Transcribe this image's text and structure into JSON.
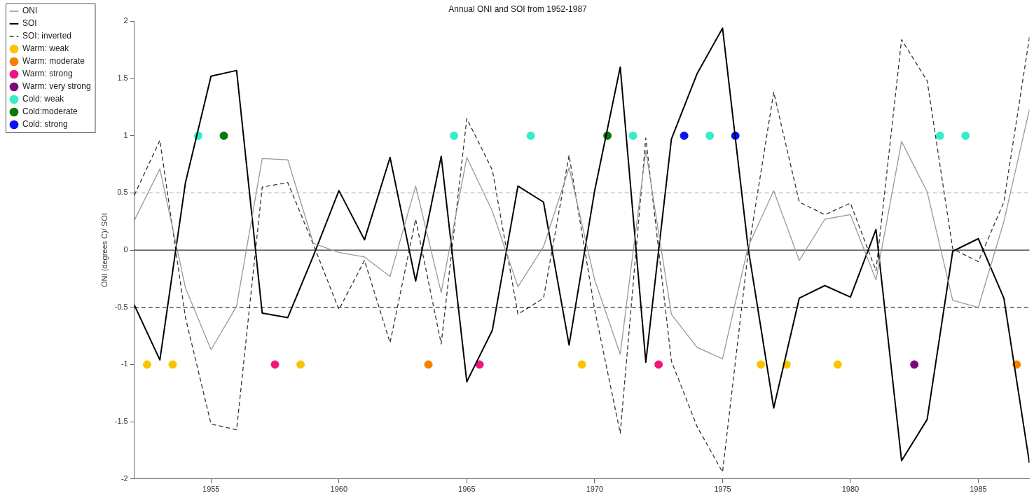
{
  "chart_data": {
    "type": "line",
    "title": "Annual ONI and SOI from 1952-1987",
    "ylabel": "ONI (degrees C)/ SOI",
    "x": [
      1952,
      1953,
      1954,
      1955,
      1956,
      1957,
      1958,
      1959,
      1960,
      1961,
      1962,
      1963,
      1964,
      1965,
      1966,
      1967,
      1968,
      1969,
      1970,
      1971,
      1972,
      1973,
      1974,
      1975,
      1976,
      1977,
      1978,
      1979,
      1980,
      1981,
      1982,
      1983,
      1984,
      1985,
      1986,
      1987
    ],
    "series": [
      {
        "name": "ONI",
        "type": "line",
        "line_style": "solid",
        "color": "#999999",
        "values": [
          0.26,
          0.71,
          -0.33,
          -0.87,
          -0.49,
          0.8,
          0.79,
          0.06,
          -0.02,
          -0.06,
          -0.23,
          0.56,
          -0.37,
          0.81,
          0.34,
          -0.32,
          0.03,
          0.72,
          -0.26,
          -0.91,
          0.87,
          -0.56,
          -0.85,
          -0.95,
          0.03,
          0.52,
          -0.09,
          0.27,
          0.31,
          -0.26,
          0.95,
          0.51,
          -0.44,
          -0.5,
          0.25,
          1.23
        ]
      },
      {
        "name": "SOI",
        "type": "line",
        "line_style": "solid",
        "color": "#000000",
        "values": [
          -0.48,
          -0.96,
          0.59,
          1.52,
          1.57,
          -0.55,
          -0.59,
          -0.05,
          0.52,
          0.09,
          0.81,
          -0.27,
          0.82,
          -1.15,
          -0.7,
          0.56,
          0.42,
          -0.83,
          0.52,
          1.6,
          -0.98,
          0.97,
          1.54,
          1.94,
          0.02,
          -1.38,
          -0.42,
          -0.31,
          -0.41,
          0.18,
          -1.84,
          -1.48,
          -0.01,
          0.1,
          -0.42,
          -1.86
        ]
      },
      {
        "name": "SOI: inverted",
        "type": "line",
        "line_style": "dashed",
        "color": "#333333",
        "values": [
          0.48,
          0.96,
          -0.59,
          -1.52,
          -1.57,
          0.55,
          0.59,
          0.05,
          -0.52,
          -0.09,
          -0.81,
          0.27,
          -0.82,
          1.15,
          0.7,
          -0.56,
          -0.42,
          0.83,
          -0.52,
          -1.6,
          0.98,
          -0.97,
          -1.54,
          -1.94,
          -0.02,
          1.38,
          0.42,
          0.31,
          0.41,
          -0.18,
          1.84,
          1.48,
          0.01,
          -0.1,
          0.42,
          1.86
        ]
      },
      {
        "name": "Warm: weak",
        "type": "scatter",
        "marker": "circle",
        "color": "#fcc300",
        "x": [
          1952.5,
          1953.5,
          1958.5,
          1969.5,
          1976.5,
          1977.5,
          1979.5
        ],
        "values": [
          -1,
          -1,
          -1,
          -1,
          -1,
          -1,
          -1
        ]
      },
      {
        "name": "Warm: moderate",
        "type": "scatter",
        "marker": "circle",
        "color": "#f78000",
        "x": [
          1963.5,
          1986.5
        ],
        "values": [
          -1,
          -1
        ]
      },
      {
        "name": "Warm: strong",
        "type": "scatter",
        "marker": "circle",
        "color": "#f0157a",
        "x": [
          1957.5,
          1965.5,
          1972.5
        ],
        "values": [
          -1,
          -1,
          -1
        ]
      },
      {
        "name": "Warm: very strong",
        "type": "scatter",
        "marker": "circle",
        "color": "#7a0a7a",
        "x": [
          1982.5
        ],
        "values": [
          -1
        ]
      },
      {
        "name": "Cold: weak",
        "type": "scatter",
        "marker": "circle",
        "color": "#33eec8",
        "x": [
          1954.5,
          1964.5,
          1967.5,
          1971.5,
          1974.5,
          1983.5,
          1984.5
        ],
        "values": [
          1,
          1,
          1,
          1,
          1,
          1,
          1
        ]
      },
      {
        "name": "Cold:moderate",
        "type": "scatter",
        "marker": "circle",
        "color": "#0a780a",
        "x": [
          1955.5,
          1970.5
        ],
        "values": [
          1,
          1
        ]
      },
      {
        "name": "Cold: strong",
        "type": "scatter",
        "marker": "circle",
        "color": "#0a14f0",
        "x": [
          1973.5,
          1975.5
        ],
        "values": [
          1,
          1
        ]
      }
    ],
    "xlim": [
      1952,
      1987
    ],
    "xticks": [
      1955,
      1960,
      1965,
      1970,
      1975,
      1980,
      1985
    ],
    "ylim": [
      -2,
      2
    ],
    "yticks": [
      -2,
      -1.5,
      -1,
      -0.5,
      0,
      0.5,
      1,
      1.5,
      2
    ],
    "ref_lines": [
      {
        "axis": "y",
        "value": 0.5,
        "color": "#b4b4b4",
        "line_style": "dashed"
      },
      {
        "axis": "y",
        "value": 0,
        "color": "#333333",
        "line_style": "solid"
      },
      {
        "axis": "y",
        "value": -0.5,
        "color": "#333333",
        "line_style": "dashed"
      }
    ],
    "grid": false,
    "legend": "top left"
  }
}
